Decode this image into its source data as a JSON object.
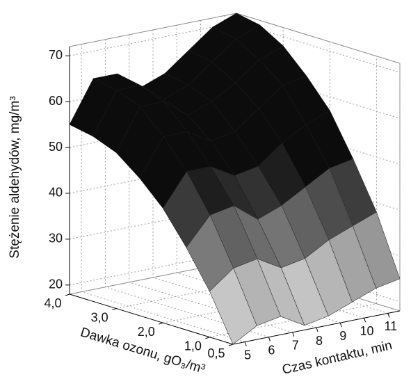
{
  "chart_data": {
    "type": "surface",
    "xlabel": "Czas kontaktu, min",
    "ylabel": "Dawka ozonu, gO₃/m³",
    "zlabel": "Stężenie aldehydów, mg/m³",
    "x": [
      4.5,
      5.5,
      6.5,
      7.5,
      8.5,
      9.5,
      10.5,
      11.5
    ],
    "y": [
      0.5,
      1.0,
      1.5,
      2.0,
      2.5,
      3.0,
      3.5,
      4.0
    ],
    "z": [
      [
        18,
        21,
        22,
        19,
        20,
        22,
        24,
        25
      ],
      [
        28,
        32,
        33,
        30,
        31,
        34,
        36,
        38
      ],
      [
        36,
        42,
        43,
        39,
        41,
        44,
        47,
        48
      ],
      [
        43,
        50,
        50,
        47,
        48,
        52,
        55,
        57
      ],
      [
        48,
        56,
        56,
        53,
        54,
        58,
        62,
        63
      ],
      [
        52,
        61,
        61,
        57,
        59,
        62,
        66,
        68
      ],
      [
        54,
        63,
        63,
        59,
        61,
        65,
        69,
        71
      ],
      [
        55,
        64,
        64,
        60,
        62,
        66,
        70,
        72
      ]
    ],
    "xlim": [
      4.5,
      11.5
    ],
    "ylim": [
      0.5,
      4.0
    ],
    "zlim": [
      18,
      72
    ],
    "xticks": [
      5,
      6,
      7,
      8,
      9,
      10,
      11
    ],
    "yticks": [
      {
        "value": 0.5,
        "label": "0,5"
      },
      {
        "value": 1.0,
        "label": "1,0"
      },
      {
        "value": 2.0,
        "label": "2,0"
      },
      {
        "value": 3.0,
        "label": "3,0"
      },
      {
        "value": 4.0,
        "label": "4,0"
      }
    ],
    "zticks": [
      20,
      30,
      40,
      50,
      60,
      70
    ],
    "grid": true
  }
}
